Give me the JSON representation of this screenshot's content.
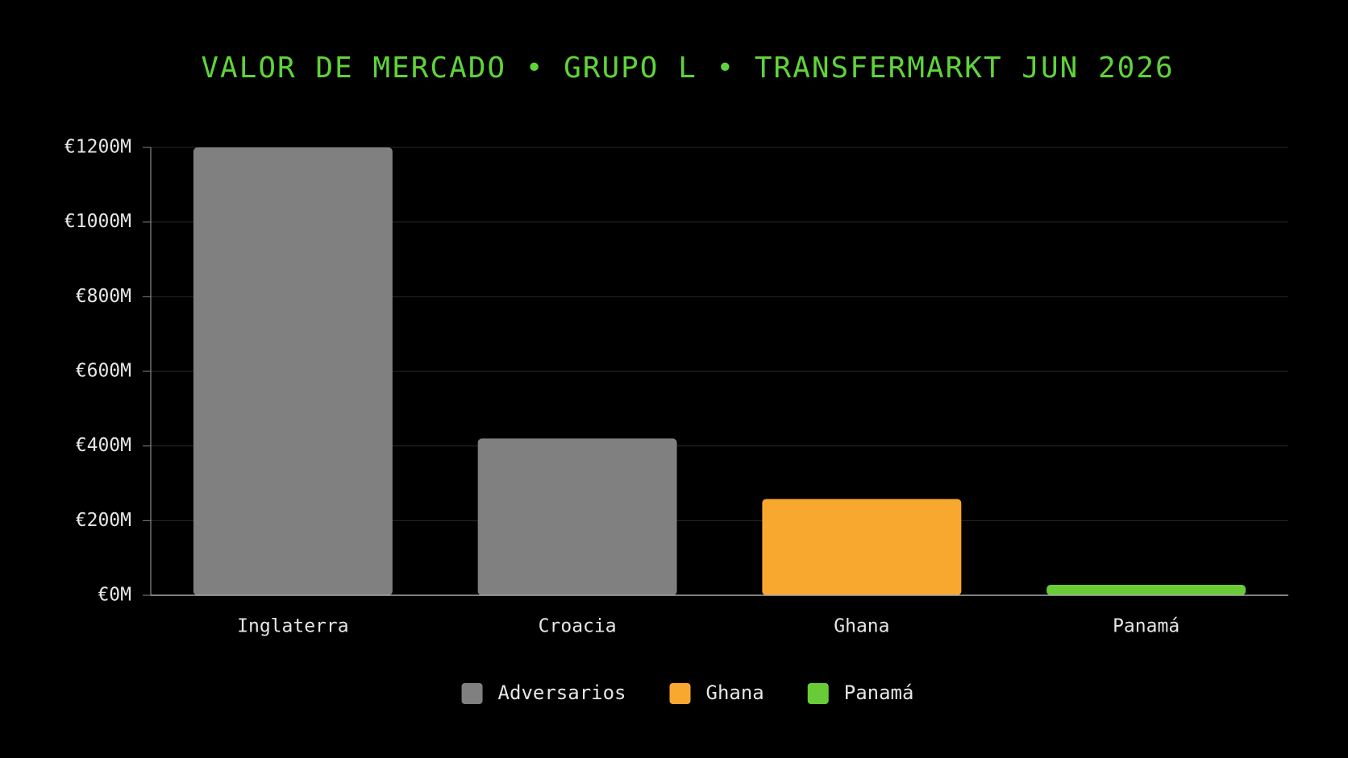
{
  "chart_data": {
    "type": "bar",
    "title": "VALOR DE MERCADO • GRUPO L • TRANSFERMARKT JUN 2026",
    "categories": [
      "Inglaterra",
      "Croacia",
      "Ghana",
      "Panamá"
    ],
    "series": [
      {
        "name": "Adversarios",
        "color": "#808080",
        "values": [
          1200,
          420,
          null,
          null
        ]
      },
      {
        "name": "Ghana",
        "color": "#f9a82f",
        "values": [
          null,
          null,
          258,
          null
        ]
      },
      {
        "name": "Panamá",
        "color": "#69cc36",
        "values": [
          null,
          null,
          null,
          28
        ]
      }
    ],
    "ylim": [
      0,
      1200
    ],
    "yticks": [
      {
        "value": 0,
        "label": "€0M"
      },
      {
        "value": 200,
        "label": "€200M"
      },
      {
        "value": 400,
        "label": "€400M"
      },
      {
        "value": 600,
        "label": "€600M"
      },
      {
        "value": 800,
        "label": "€800M"
      },
      {
        "value": 1000,
        "label": "€1000M"
      },
      {
        "value": 1200,
        "label": "€1200M"
      }
    ],
    "grid": true,
    "legend": "bottom"
  }
}
